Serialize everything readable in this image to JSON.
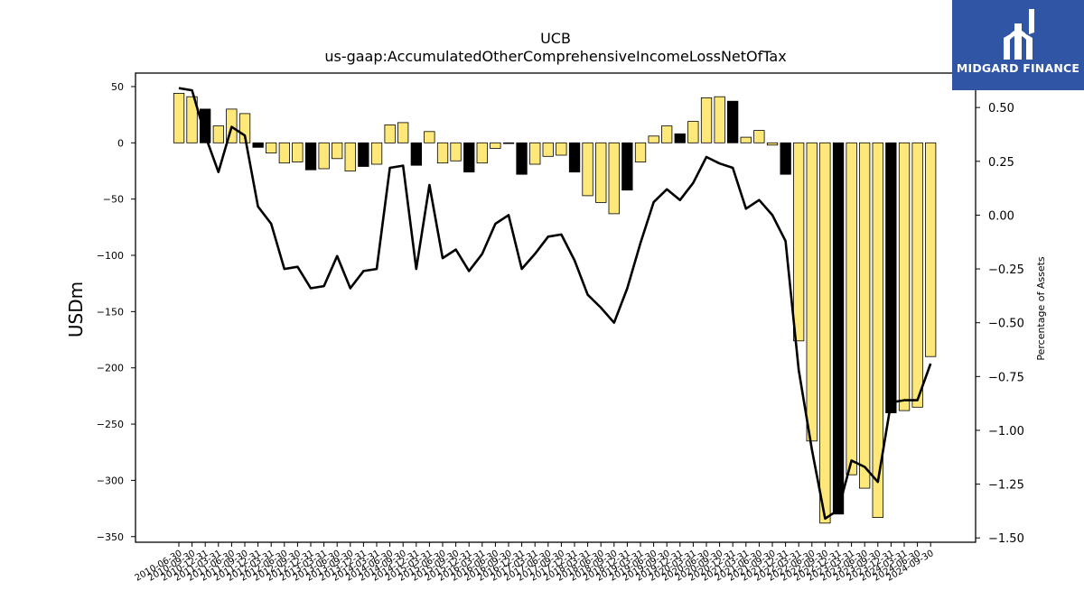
{
  "logo": {
    "text": "MIDGARD FINANCE",
    "icon": "midgard-logo-icon",
    "background": "#2f55a4"
  },
  "chart_data": {
    "type": "bar",
    "title": "UCB",
    "subtitle": "us-gaap:AccumulatedOtherComprehensiveIncomeLossNetOfTax",
    "ylabel": "USDm",
    "y2label": "Percentage of Assets",
    "ylim": [
      -355,
      62
    ],
    "y2lim": [
      -1.52,
      0.66
    ],
    "yticks": [
      50,
      0,
      -50,
      -100,
      -150,
      -200,
      -250,
      -300,
      -350
    ],
    "y2ticks": [
      0.5,
      0.25,
      0.0,
      -0.25,
      -0.5,
      -0.75,
      -1.0,
      -1.25,
      -1.5
    ],
    "grid": false,
    "colors": {
      "bar": "#ffe87a",
      "bar_q4": "#000000",
      "line": "#000000"
    },
    "categories": [
      "2010-06-30",
      "2010-09-30",
      "2010-12-31",
      "2011-03-31",
      "2011-06-30",
      "2011-09-30",
      "2011-12-31",
      "2012-03-31",
      "2012-06-30",
      "2012-09-30",
      "2012-12-31",
      "2013-03-31",
      "2013-06-30",
      "2013-09-30",
      "2013-12-31",
      "2014-03-31",
      "2014-06-30",
      "2014-09-30",
      "2014-12-31",
      "2015-03-31",
      "2015-06-30",
      "2015-09-30",
      "2015-12-31",
      "2016-03-31",
      "2016-06-30",
      "2016-09-30",
      "2016-12-31",
      "2017-03-31",
      "2017-06-30",
      "2017-09-30",
      "2017-12-31",
      "2018-03-31",
      "2018-06-30",
      "2018-09-30",
      "2018-12-31",
      "2019-03-31",
      "2019-06-30",
      "2019-09-30",
      "2019-12-31",
      "2020-03-31",
      "2020-06-30",
      "2020-09-30",
      "2020-12-31",
      "2021-03-31",
      "2021-06-30",
      "2021-09-30",
      "2021-12-31",
      "2022-03-31",
      "2022-06-30",
      "2022-09-30",
      "2022-12-31",
      "2023-03-31",
      "2023-06-30",
      "2023-09-30",
      "2023-12-31",
      "2024-03-31",
      "2024-06-30",
      "2024-09-30"
    ],
    "tick_labels": [
      "2010-06-30",
      "2010-09-30",
      "2010-12-31",
      "2011-03-31",
      "2011-06-30",
      "2011-09-30",
      "2011-12-31",
      "2012-03-31",
      "2012-06-30",
      "2012-09-30",
      "2012-12-31",
      "2013-03-31",
      "2013-06-30",
      "2013-09-30",
      "2013-12-31",
      "2014-03-31",
      "2014-06-30",
      "2014-09-30",
      "2014-12-31",
      "2015-03-31",
      "2015-06-30",
      "2015-09-30",
      "2015-12-31",
      "2016-03-31",
      "2016-06-30",
      "2016-09-30",
      "2016-12-31",
      "2017-03-31",
      "2017-06-30",
      "2017-09-30",
      "2017-12-31",
      "2018-03-31",
      "2018-06-30",
      "2018-09-30",
      "2018-12-31",
      "2019-03-31",
      "2019-06-30",
      "2019-09-30",
      "2019-12-31",
      "2020-03-31",
      "2020-06-30",
      "2020-09-30",
      "2020-12-31",
      "2021-03-31",
      "2021-06-30",
      "2021-09-30",
      "2021-12-31",
      "2022-03-31",
      "2022-06-30",
      "2022-09-30",
      "2022-12-31",
      "2023-03-31",
      "2023-06-30",
      "2023-09-30",
      "2023-12-31",
      "2024-03-31",
      "2024-06-30",
      "2024-09-30"
    ],
    "values": [
      44,
      41,
      30,
      15,
      30,
      26,
      -4,
      -9,
      -18,
      -17,
      -24,
      -23,
      -14,
      -25,
      -21,
      -19,
      16,
      18,
      -20,
      10,
      -18,
      -16,
      -26,
      -18,
      -5,
      0,
      -28,
      -19,
      -12,
      -11,
      -26,
      -47,
      -53,
      -63,
      -42,
      -17,
      6,
      15,
      8,
      19,
      40,
      41,
      37,
      5,
      11,
      -2,
      -28,
      -176,
      -265,
      -338,
      -330,
      -295,
      -307,
      -333,
      -240,
      -238,
      -235,
      -190
    ],
    "pct_assets": [
      0.59,
      0.58,
      0.37,
      0.2,
      0.41,
      0.37,
      0.04,
      -0.04,
      -0.25,
      -0.24,
      -0.34,
      -0.33,
      -0.19,
      -0.34,
      -0.26,
      -0.25,
      0.22,
      0.23,
      -0.25,
      0.14,
      -0.2,
      -0.16,
      -0.26,
      -0.18,
      -0.04,
      0.0,
      -0.25,
      -0.18,
      -0.1,
      -0.09,
      -0.21,
      -0.37,
      -0.43,
      -0.5,
      -0.34,
      -0.13,
      0.06,
      0.12,
      0.07,
      0.15,
      0.27,
      0.24,
      0.22,
      0.03,
      0.07,
      0.0,
      -0.12,
      -0.72,
      -1.09,
      -1.41,
      -1.37,
      -1.14,
      -1.17,
      -1.24,
      -0.87,
      -0.86,
      -0.86,
      -0.69
    ]
  }
}
